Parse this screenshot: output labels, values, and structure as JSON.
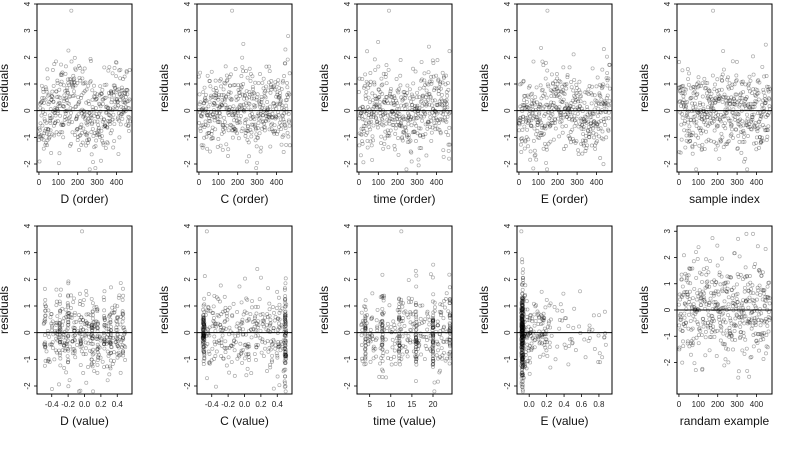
{
  "chart_data": [
    {
      "type": "scatter",
      "xlabel": "D (order)",
      "ylabel": "residuals",
      "xlim": [
        -10,
        480
      ],
      "ylim": [
        -2.3,
        4.0
      ],
      "xticks": [
        0,
        100,
        200,
        300,
        400
      ],
      "xtick_labels": [
        "0",
        "100",
        "200",
        "300",
        "400"
      ],
      "yticks": [
        -2,
        -1,
        0,
        1,
        2,
        3,
        4
      ],
      "ytick_labels": [
        "-2",
        "-1",
        "0",
        "1",
        "2",
        "3",
        "4"
      ],
      "hline": 0,
      "pattern": "index",
      "n": 470,
      "seed": 11
    },
    {
      "type": "scatter",
      "xlabel": "C (order)",
      "ylabel": "residuals",
      "xlim": [
        -10,
        480
      ],
      "ylim": [
        -2.3,
        4.0
      ],
      "xticks": [
        0,
        100,
        200,
        300,
        400
      ],
      "xtick_labels": [
        "0",
        "100",
        "200",
        "300",
        "400"
      ],
      "yticks": [
        -2,
        -1,
        0,
        1,
        2,
        3,
        4
      ],
      "ytick_labels": [
        "-2",
        "-1",
        "0",
        "1",
        "2",
        "3",
        "4"
      ],
      "hline": 0,
      "pattern": "index",
      "n": 470,
      "seed": 23
    },
    {
      "type": "scatter",
      "xlabel": "time (order)",
      "ylabel": "residuals",
      "xlim": [
        -10,
        480
      ],
      "ylim": [
        -2.3,
        4.0
      ],
      "xticks": [
        0,
        100,
        200,
        300,
        400
      ],
      "xtick_labels": [
        "0",
        "100",
        "200",
        "300",
        "400"
      ],
      "yticks": [
        -2,
        -1,
        0,
        1,
        2,
        3,
        4
      ],
      "ytick_labels": [
        "-2",
        "-1",
        "0",
        "1",
        "2",
        "3",
        "4"
      ],
      "hline": 0,
      "pattern": "index",
      "n": 470,
      "seed": 37
    },
    {
      "type": "scatter",
      "xlabel": "E (order)",
      "ylabel": "residuals",
      "xlim": [
        -10,
        480
      ],
      "ylim": [
        -2.3,
        4.0
      ],
      "xticks": [
        0,
        100,
        200,
        300,
        400
      ],
      "xtick_labels": [
        "0",
        "100",
        "200",
        "300",
        "400"
      ],
      "yticks": [
        -2,
        -1,
        0,
        1,
        2,
        3,
        4
      ],
      "ytick_labels": [
        "-2",
        "-1",
        "0",
        "1",
        "2",
        "3",
        "4"
      ],
      "hline": 0,
      "pattern": "index",
      "n": 470,
      "seed": 41
    },
    {
      "type": "scatter",
      "xlabel": "sample index",
      "ylabel": "residuals",
      "xlim": [
        -10,
        480
      ],
      "ylim": [
        -2.3,
        4.0
      ],
      "xticks": [
        0,
        100,
        200,
        300,
        400
      ],
      "xtick_labels": [
        "0",
        "100",
        "200",
        "300",
        "400"
      ],
      "yticks": [
        -2,
        -1,
        0,
        1,
        2,
        3,
        4
      ],
      "ytick_labels": [
        "-2",
        "-1",
        "0",
        "1",
        "2",
        "3",
        "4"
      ],
      "hline": 0,
      "pattern": "index",
      "n": 470,
      "seed": 53
    },
    {
      "type": "scatter",
      "xlabel": "D (value)",
      "ylabel": "residuals",
      "xlim": [
        -0.58,
        0.58
      ],
      "ylim": [
        -2.3,
        4.0
      ],
      "xticks": [
        -0.4,
        -0.2,
        0.0,
        0.2,
        0.4
      ],
      "xtick_labels": [
        "-0.4",
        "-0.2",
        "0.0",
        "0.2",
        "0.4"
      ],
      "yticks": [
        -2,
        -1,
        0,
        1,
        2,
        3,
        4
      ],
      "ytick_labels": [
        "-2",
        "-1",
        "0",
        "1",
        "2",
        "3",
        "4"
      ],
      "hline": 0,
      "pattern": "dvalue",
      "n": 470,
      "seed": 61
    },
    {
      "type": "scatter",
      "xlabel": "C (value)",
      "ylabel": "residuals",
      "xlim": [
        -0.58,
        0.58
      ],
      "ylim": [
        -2.3,
        4.0
      ],
      "xticks": [
        -0.4,
        -0.2,
        0.0,
        0.2,
        0.4
      ],
      "xtick_labels": [
        "-0.4",
        "-0.2",
        "0.0",
        "0.2",
        "0.4"
      ],
      "yticks": [
        -2,
        -1,
        0,
        1,
        2,
        3,
        4
      ],
      "ytick_labels": [
        "-2",
        "-1",
        "0",
        "1",
        "2",
        "3",
        "4"
      ],
      "hline": 0,
      "pattern": "cvalue",
      "n": 470,
      "seed": 67
    },
    {
      "type": "scatter",
      "xlabel": "time (value)",
      "ylabel": "residuals",
      "xlim": [
        2,
        24.5
      ],
      "ylim": [
        -2.3,
        4.0
      ],
      "xticks": [
        5,
        10,
        15,
        20
      ],
      "xtick_labels": [
        "5",
        "10",
        "15",
        "20"
      ],
      "yticks": [
        -2,
        -1,
        0,
        1,
        2,
        3,
        4
      ],
      "ytick_labels": [
        "-2",
        "-1",
        "0",
        "1",
        "2",
        "3",
        "4"
      ],
      "hline": 0,
      "pattern": "tvalue",
      "n": 470,
      "seed": 71
    },
    {
      "type": "scatter",
      "xlabel": "E (value)",
      "ylabel": "residuals",
      "xlim": [
        -0.14,
        0.95
      ],
      "ylim": [
        -2.3,
        4.0
      ],
      "xticks": [
        0.0,
        0.2,
        0.4,
        0.6,
        0.8
      ],
      "xtick_labels": [
        "0.0",
        "0.2",
        "0.4",
        "0.6",
        "0.8"
      ],
      "yticks": [
        -2,
        -1,
        0,
        1,
        2,
        3,
        4
      ],
      "ytick_labels": [
        "-2",
        "-1",
        "0",
        "1",
        "2",
        "3",
        "4"
      ],
      "hline": 0,
      "pattern": "evalue",
      "n": 470,
      "seed": 79
    },
    {
      "type": "scatter",
      "xlabel": "randam example",
      "ylabel": "residuals",
      "xlim": [
        -10,
        480
      ],
      "ylim": [
        -3.2,
        3.2
      ],
      "xticks": [
        0,
        100,
        200,
        300,
        400
      ],
      "xtick_labels": [
        "0",
        "100",
        "200",
        "300",
        "400"
      ],
      "yticks": [
        -2,
        -1,
        0,
        1,
        2,
        3
      ],
      "ytick_labels": [
        "-2",
        "-1",
        "0",
        "1",
        "2",
        "3"
      ],
      "hline": 0,
      "pattern": "random",
      "n": 470,
      "seed": 97
    }
  ]
}
